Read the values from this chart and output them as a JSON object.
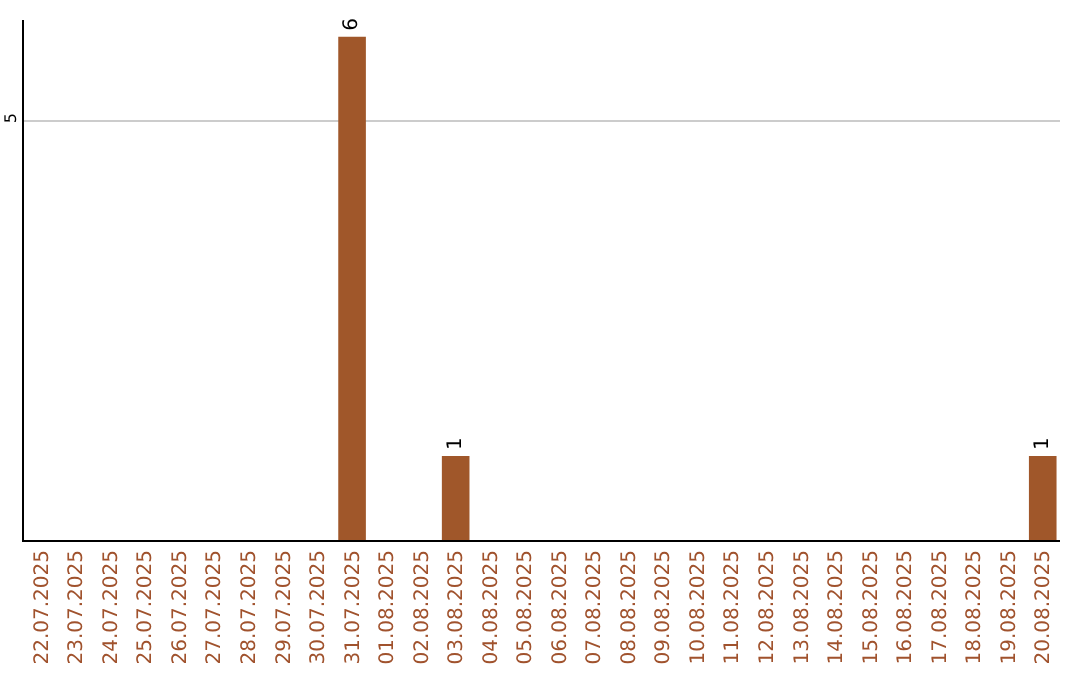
{
  "chart_data": {
    "type": "bar",
    "categories": [
      "22.07.2025",
      "23.07.2025",
      "24.07.2025",
      "25.07.2025",
      "26.07.2025",
      "27.07.2025",
      "28.07.2025",
      "29.07.2025",
      "30.07.2025",
      "31.07.2025",
      "01.08.2025",
      "02.08.2025",
      "03.08.2025",
      "04.08.2025",
      "05.08.2025",
      "06.08.2025",
      "07.08.2025",
      "08.08.2025",
      "09.08.2025",
      "10.08.2025",
      "11.08.2025",
      "12.08.2025",
      "13.08.2025",
      "14.08.2025",
      "15.08.2025",
      "16.08.2025",
      "17.08.2025",
      "18.08.2025",
      "19.08.2025",
      "20.08.2025"
    ],
    "values": [
      0,
      0,
      0,
      0,
      0,
      0,
      0,
      0,
      0,
      6,
      0,
      0,
      1,
      0,
      0,
      0,
      0,
      0,
      0,
      0,
      0,
      0,
      0,
      0,
      0,
      0,
      0,
      0,
      0,
      1
    ],
    "value_labels": [
      null,
      null,
      null,
      null,
      null,
      null,
      null,
      null,
      null,
      "6",
      null,
      null,
      "1",
      null,
      null,
      null,
      null,
      null,
      null,
      null,
      null,
      null,
      null,
      null,
      null,
      null,
      null,
      null,
      null,
      "1"
    ],
    "color": "#a0572a",
    "ylim": [
      0,
      6.2
    ],
    "yticks": [
      5
    ],
    "grid": "y",
    "legend": false
  }
}
